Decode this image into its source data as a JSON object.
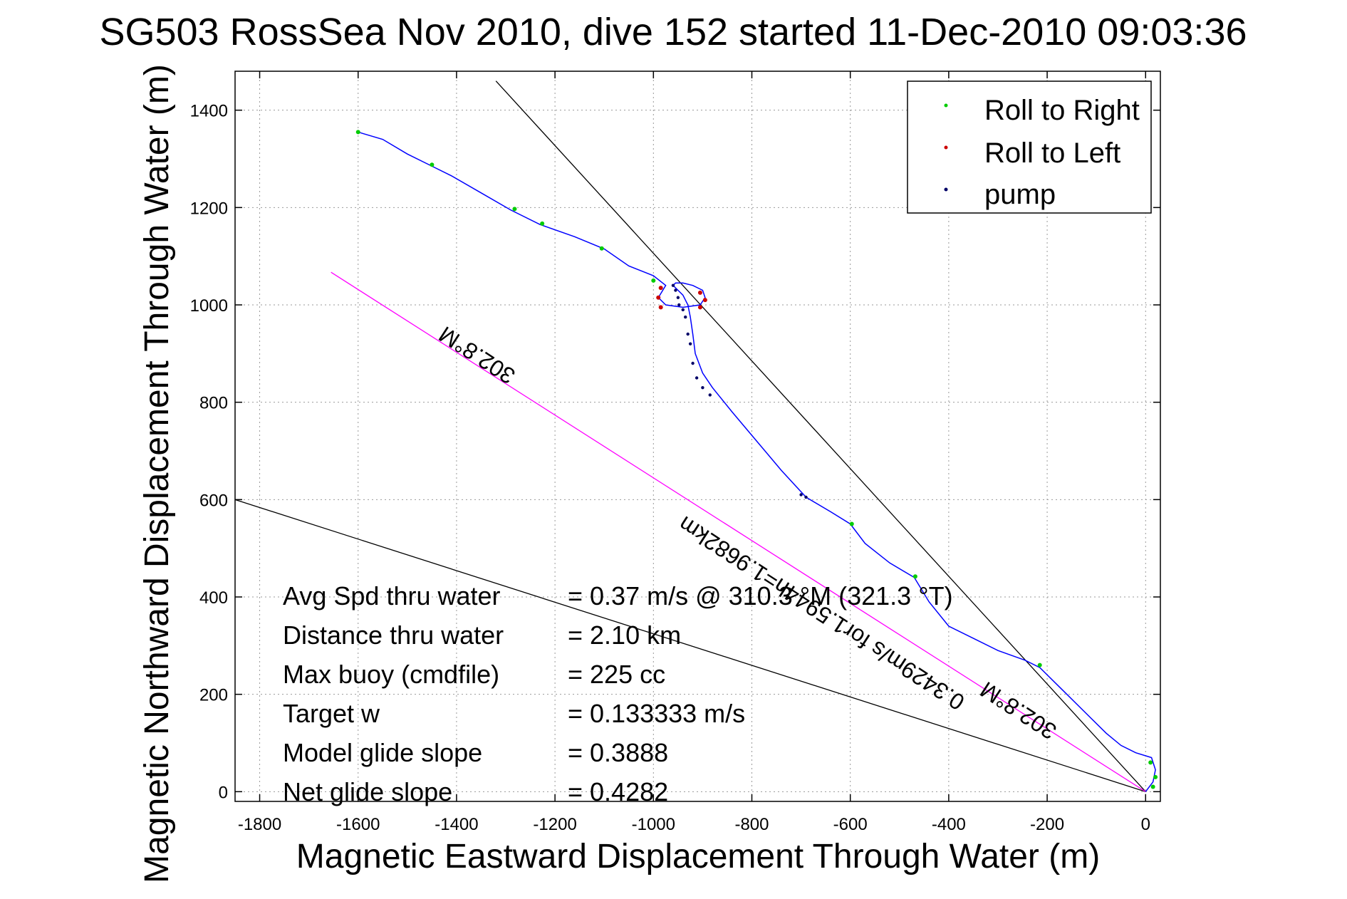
{
  "chart_data": {
    "type": "line",
    "title": "SG503 RossSea Nov 2010, dive 152 started 11-Dec-2010 09:03:36",
    "xlabel": "Magnetic Eastward Displacement Through Water (m)",
    "ylabel": "Magnetic Northward Displacement Through Water (m)",
    "xlim": [
      -1850,
      30
    ],
    "ylim": [
      -20,
      1480
    ],
    "xticks": [
      -1800,
      -1600,
      -1400,
      -1200,
      -1000,
      -800,
      -600,
      -400,
      -200,
      0
    ],
    "yticks": [
      0,
      200,
      400,
      600,
      800,
      1000,
      1200,
      1400
    ],
    "grid": true,
    "legend_position": "top-right",
    "legend": [
      {
        "label": "Roll to Right",
        "color": "#00cc00"
      },
      {
        "label": "Roll to Left",
        "color": "#cc0000"
      },
      {
        "label": "pump",
        "color": "#000066"
      }
    ],
    "colors": {
      "track": "#0000ff",
      "heading_line": "#ff00ff",
      "ref_line": "#000000"
    },
    "track": [
      [
        0,
        0
      ],
      [
        15,
        20
      ],
      [
        20,
        45
      ],
      [
        12,
        70
      ],
      [
        -20,
        80
      ],
      [
        -50,
        95
      ],
      [
        -80,
        120
      ],
      [
        -120,
        160
      ],
      [
        -170,
        210
      ],
      [
        -215,
        255
      ],
      [
        -245,
        270
      ],
      [
        -300,
        290
      ],
      [
        -350,
        315
      ],
      [
        -400,
        340
      ],
      [
        -440,
        390
      ],
      [
        -470,
        440
      ],
      [
        -520,
        470
      ],
      [
        -570,
        510
      ],
      [
        -600,
        550
      ],
      [
        -640,
        575
      ],
      [
        -690,
        605
      ],
      [
        -740,
        660
      ],
      [
        -790,
        720
      ],
      [
        -840,
        780
      ],
      [
        -880,
        830
      ],
      [
        -900,
        860
      ],
      [
        -915,
        900
      ],
      [
        -920,
        940
      ],
      [
        -925,
        975
      ],
      [
        -930,
        1000
      ],
      [
        -940,
        1020
      ],
      [
        -950,
        1030
      ],
      [
        -960,
        1040
      ],
      [
        -955,
        1045
      ],
      [
        -940,
        1045
      ],
      [
        -920,
        1040
      ],
      [
        -900,
        1030
      ],
      [
        -895,
        1015
      ],
      [
        -905,
        1000
      ],
      [
        -940,
        995
      ],
      [
        -975,
        1000
      ],
      [
        -990,
        1015
      ],
      [
        -975,
        1040
      ],
      [
        -1000,
        1060
      ],
      [
        -1050,
        1080
      ],
      [
        -1100,
        1115
      ],
      [
        -1160,
        1140
      ],
      [
        -1230,
        1165
      ],
      [
        -1290,
        1195
      ],
      [
        -1350,
        1230
      ],
      [
        -1410,
        1265
      ],
      [
        -1450,
        1285
      ],
      [
        -1500,
        1310
      ],
      [
        -1550,
        1340
      ],
      [
        -1600,
        1355
      ]
    ],
    "roll_right": [
      [
        -1600,
        1355
      ],
      [
        -1450,
        1288
      ],
      [
        -1282,
        1197
      ],
      [
        -1226,
        1167
      ],
      [
        -1105,
        1116
      ],
      [
        -1000,
        1050
      ],
      [
        -597,
        550
      ],
      [
        -468,
        442
      ],
      [
        -215,
        260
      ],
      [
        10,
        60
      ],
      [
        20,
        30
      ],
      [
        15,
        10
      ]
    ],
    "roll_left": [
      [
        -985,
        1035
      ],
      [
        -990,
        1015
      ],
      [
        -985,
        995
      ],
      [
        -905,
        1025
      ],
      [
        -895,
        1010
      ],
      [
        -905,
        995
      ]
    ],
    "pump": [
      [
        -960,
        1040
      ],
      [
        -955,
        1030
      ],
      [
        -950,
        1015
      ],
      [
        -948,
        1000
      ],
      [
        -940,
        990
      ],
      [
        -935,
        975
      ],
      [
        -930,
        940
      ],
      [
        -925,
        920
      ],
      [
        -920,
        880
      ],
      [
        -912,
        850
      ],
      [
        -900,
        830
      ],
      [
        -885,
        815
      ],
      [
        -700,
        610
      ],
      [
        -690,
        605
      ]
    ],
    "heading_line": {
      "from": [
        -1655,
        1067
      ],
      "to": [
        0,
        0
      ]
    },
    "ref_line_upper": {
      "from": [
        -1320,
        1460
      ],
      "to": [
        0,
        0
      ]
    },
    "ref_line_lower": {
      "from": [
        -1850,
        600
      ],
      "to": [
        0,
        0
      ]
    },
    "annotations": [
      {
        "text": "302.8°M",
        "at": [
          -1350,
          910
        ],
        "angle_deg": 33
      },
      {
        "text": "0.3429m/s for1.5944h=1.9682km",
        "at": [
          -650,
          380
        ],
        "angle_deg": 33
      },
      {
        "text": "302.8°M",
        "at": [
          -250,
          180
        ],
        "angle_deg": 33
      }
    ],
    "stats": [
      {
        "label": "Avg Spd thru water",
        "value": "=  0.37 m/s @ 310.3 °M (321.3 °T)"
      },
      {
        "label": "Distance thru water",
        "value": "=  2.10 km"
      },
      {
        "label": "Max buoy (cmdfile)",
        "value": "= 225 cc"
      },
      {
        "label": "Target w",
        "value": "= 0.133333 m/s"
      },
      {
        "label": "Model glide slope",
        "value": "= 0.3888"
      },
      {
        "label": "Net glide slope",
        "value": "= 0.4282"
      }
    ]
  }
}
